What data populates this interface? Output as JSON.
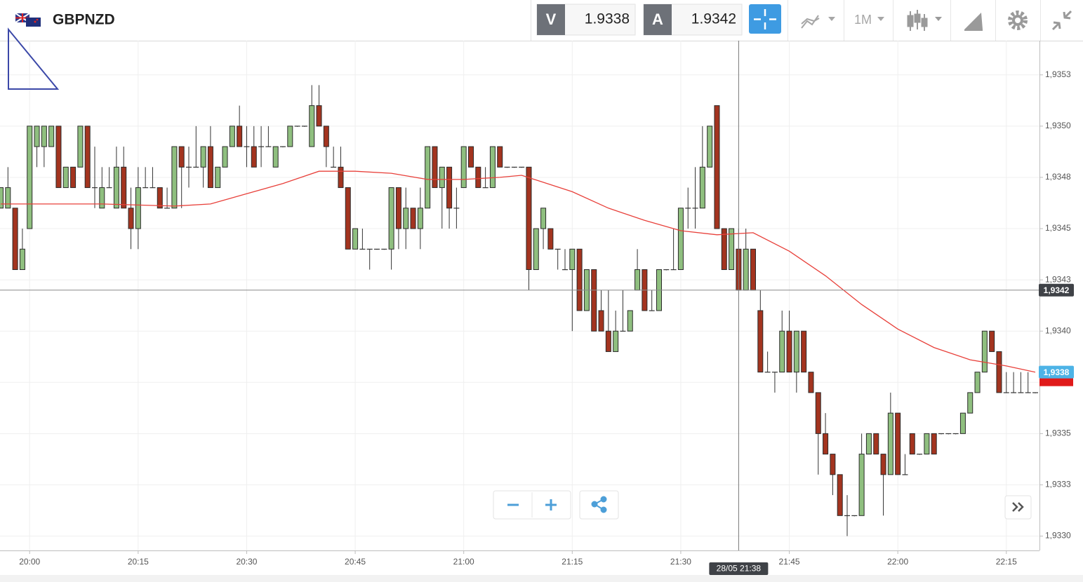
{
  "toolbar": {
    "symbol": "GBPNZD",
    "bid_label": "V",
    "bid": 1.9338,
    "ask_label": "A",
    "ask": 1.9342,
    "timeframe": "1M"
  },
  "chart_data": {
    "type": "candlestick",
    "x": [
      "19:56",
      "19:57",
      "19:58",
      "19:59",
      "20:00",
      "20:01",
      "20:02",
      "20:03",
      "20:04",
      "20:05",
      "20:06",
      "20:07",
      "20:08",
      "20:09",
      "20:10",
      "20:11",
      "20:12",
      "20:13",
      "20:14",
      "20:15",
      "20:16",
      "20:17",
      "20:18",
      "20:19",
      "20:20",
      "20:21",
      "20:22",
      "20:23",
      "20:24",
      "20:25",
      "20:26",
      "20:27",
      "20:28",
      "20:29",
      "20:30",
      "20:31",
      "20:32",
      "20:33",
      "20:34",
      "20:35",
      "20:36",
      "20:37",
      "20:38",
      "20:39",
      "20:40",
      "20:41",
      "20:42",
      "20:43",
      "20:44",
      "20:45",
      "20:46",
      "20:47",
      "20:48",
      "20:49",
      "20:50",
      "20:51",
      "20:52",
      "20:53",
      "20:54",
      "20:55",
      "20:56",
      "20:57",
      "20:58",
      "20:59",
      "21:00",
      "21:01",
      "21:02",
      "21:03",
      "21:04",
      "21:05",
      "21:06",
      "21:07",
      "21:08",
      "21:09",
      "21:10",
      "21:11",
      "21:12",
      "21:13",
      "21:14",
      "21:15",
      "21:16",
      "21:17",
      "21:18",
      "21:19",
      "21:20",
      "21:21",
      "21:22",
      "21:23",
      "21:24",
      "21:25",
      "21:26",
      "21:27",
      "21:28",
      "21:29",
      "21:30",
      "21:31",
      "21:32",
      "21:33",
      "21:34",
      "21:35",
      "21:36",
      "21:37",
      "21:38",
      "21:39",
      "21:40",
      "21:41",
      "21:42",
      "21:43",
      "21:44",
      "21:45",
      "21:46",
      "21:47",
      "21:48",
      "21:49",
      "21:50",
      "21:51",
      "21:52",
      "21:53",
      "21:54",
      "21:55",
      "21:56",
      "21:57",
      "21:58",
      "21:59",
      "22:00",
      "22:01",
      "22:02",
      "22:03",
      "22:04",
      "22:05",
      "22:06",
      "22:07",
      "22:08",
      "22:09",
      "22:10",
      "22:11",
      "22:12",
      "22:13",
      "22:14",
      "22:15",
      "22:16",
      "22:17",
      "22:18",
      "22:19"
    ],
    "open": [
      1.9346,
      1.9346,
      1.9346,
      1.9343,
      1.9345,
      1.9349,
      1.9349,
      1.9349,
      1.935,
      1.9347,
      1.9348,
      1.9348,
      1.935,
      1.9347,
      1.9346,
      1.9347,
      1.9346,
      1.9348,
      1.9346,
      1.9345,
      1.9347,
      1.9347,
      1.9347,
      1.9346,
      1.9346,
      1.9349,
      1.9348,
      1.9348,
      1.9348,
      1.9349,
      1.9347,
      1.9348,
      1.9349,
      1.935,
      1.9349,
      1.9349,
      1.9349,
      1.9349,
      1.9348,
      1.9349,
      1.9349,
      1.935,
      1.935,
      1.9349,
      1.9351,
      1.935,
      1.9348,
      1.9348,
      1.9347,
      1.9344,
      1.9344,
      1.9344,
      1.9344,
      1.9344,
      1.9344,
      1.9347,
      1.9345,
      1.9346,
      1.9345,
      1.9346,
      1.9349,
      1.9347,
      1.9348,
      1.9346,
      1.9347,
      1.9349,
      1.9348,
      1.9347,
      1.9347,
      1.9349,
      1.9348,
      1.9348,
      1.9348,
      1.9348,
      1.9343,
      1.9345,
      1.9345,
      1.9344,
      1.9343,
      1.9343,
      1.9344,
      1.9341,
      1.9343,
      1.9341,
      1.934,
      1.9339,
      1.934,
      1.934,
      1.9342,
      1.9343,
      1.9341,
      1.9341,
      1.9343,
      1.9343,
      1.9343,
      1.9346,
      1.9346,
      1.9346,
      1.9348,
      1.9351,
      1.9345,
      1.9343,
      1.9344,
      1.9342,
      1.9344,
      1.9341,
      1.9338,
      1.9338,
      1.9338,
      1.934,
      1.9338,
      1.934,
      1.9338,
      1.9337,
      1.9335,
      1.9334,
      1.9333,
      1.9331,
      1.9331,
      1.9331,
      1.9334,
      1.9335,
      1.9334,
      1.9333,
      1.9336,
      1.9333,
      1.9335,
      1.9334,
      1.9334,
      1.9335,
      1.9335,
      1.9335,
      1.9335,
      1.9335,
      1.9336,
      1.9337,
      1.9338,
      1.934,
      1.9339,
      1.9337,
      1.9337,
      1.9337,
      1.9337,
      1.9337
    ],
    "high": [
      1.9347,
      1.9348,
      1.9346,
      1.9345,
      1.935,
      1.935,
      1.935,
      1.935,
      1.935,
      1.9348,
      1.9348,
      1.935,
      1.935,
      1.9349,
      1.9348,
      1.9348,
      1.9349,
      1.9349,
      1.9347,
      1.9348,
      1.9348,
      1.9348,
      1.9347,
      1.9347,
      1.9349,
      1.9349,
      1.9349,
      1.935,
      1.9349,
      1.935,
      1.9348,
      1.9349,
      1.935,
      1.9351,
      1.935,
      1.935,
      1.935,
      1.935,
      1.9349,
      1.9349,
      1.935,
      1.935,
      1.935,
      1.9352,
      1.9352,
      1.935,
      1.9349,
      1.9349,
      1.9347,
      1.9345,
      1.9345,
      1.9344,
      1.9344,
      1.9344,
      1.9347,
      1.9347,
      1.9347,
      1.9346,
      1.9347,
      1.9349,
      1.9349,
      1.9348,
      1.9348,
      1.9347,
      1.9349,
      1.9349,
      1.9348,
      1.9348,
      1.9349,
      1.9349,
      1.9348,
      1.9348,
      1.9348,
      1.9348,
      1.9345,
      1.9346,
      1.9345,
      1.9344,
      1.9344,
      1.9344,
      1.9344,
      1.9343,
      1.9343,
      1.9342,
      1.9342,
      1.9341,
      1.9342,
      1.9341,
      1.9344,
      1.9343,
      1.9342,
      1.9343,
      1.9343,
      1.9345,
      1.9346,
      1.9347,
      1.9348,
      1.935,
      1.935,
      1.9351,
      1.9345,
      1.9345,
      1.9345,
      1.9345,
      1.9344,
      1.9342,
      1.9339,
      1.9338,
      1.9341,
      1.9341,
      1.934,
      1.934,
      1.9338,
      1.9337,
      1.9336,
      1.9334,
      1.9333,
      1.9332,
      1.9331,
      1.9335,
      1.9335,
      1.9335,
      1.9334,
      1.9337,
      1.9336,
      1.9334,
      1.9335,
      1.9334,
      1.9335,
      1.9335,
      1.9335,
      1.9335,
      1.9335,
      1.9336,
      1.9337,
      1.9338,
      1.934,
      1.934,
      1.9339,
      1.9338,
      1.9338,
      1.9338,
      1.9338,
      1.9337
    ],
    "low": [
      1.9346,
      1.9346,
      1.9343,
      1.9343,
      1.9345,
      1.9348,
      1.9348,
      1.9349,
      1.9347,
      1.9347,
      1.9347,
      1.9348,
      1.9347,
      1.9346,
      1.9346,
      1.9347,
      1.9346,
      1.9346,
      1.9344,
      1.9344,
      1.9347,
      1.9347,
      1.9346,
      1.9346,
      1.9346,
      1.9346,
      1.9347,
      1.9348,
      1.9347,
      1.9347,
      1.9347,
      1.9348,
      1.9349,
      1.9349,
      1.9348,
      1.9348,
      1.9348,
      1.9349,
      1.9348,
      1.9349,
      1.9349,
      1.935,
      1.935,
      1.9349,
      1.935,
      1.9348,
      1.9348,
      1.9347,
      1.9344,
      1.9344,
      1.9344,
      1.9343,
      1.9344,
      1.9344,
      1.9343,
      1.9344,
      1.9344,
      1.9345,
      1.9344,
      1.9346,
      1.9347,
      1.9345,
      1.9345,
      1.9345,
      1.9347,
      1.9348,
      1.9347,
      1.9347,
      1.9347,
      1.9348,
      1.9348,
      1.9348,
      1.9348,
      1.9342,
      1.9343,
      1.9344,
      1.9344,
      1.9343,
      1.9343,
      1.934,
      1.9341,
      1.9341,
      1.934,
      1.934,
      1.9339,
      1.9339,
      1.934,
      1.934,
      1.9342,
      1.9341,
      1.9341,
      1.9341,
      1.9343,
      1.9343,
      1.9343,
      1.9345,
      1.9345,
      1.9346,
      1.9348,
      1.9345,
      1.9343,
      1.9343,
      1.9342,
      1.9342,
      1.9342,
      1.9338,
      1.9338,
      1.9337,
      1.9338,
      1.9338,
      1.9337,
      1.9338,
      1.9337,
      1.9333,
      1.9334,
      1.9332,
      1.9331,
      1.933,
      1.9331,
      1.9331,
      1.9334,
      1.9334,
      1.9331,
      1.9333,
      1.9333,
      1.9333,
      1.9334,
      1.9334,
      1.9334,
      1.9334,
      1.9335,
      1.9335,
      1.9335,
      1.9335,
      1.9336,
      1.9337,
      1.9338,
      1.9339,
      1.9337,
      1.9337,
      1.9337,
      1.9337,
      1.9337,
      1.9337
    ],
    "close": [
      1.9347,
      1.9347,
      1.9343,
      1.9344,
      1.935,
      1.935,
      1.935,
      1.935,
      1.9347,
      1.9348,
      1.9347,
      1.935,
      1.9347,
      1.9347,
      1.9347,
      1.9347,
      1.9348,
      1.9346,
      1.9345,
      1.9347,
      1.9347,
      1.9347,
      1.9346,
      1.9346,
      1.9349,
      1.9348,
      1.9348,
      1.9348,
      1.9349,
      1.9347,
      1.9348,
      1.9349,
      1.935,
      1.9349,
      1.9349,
      1.9348,
      1.9349,
      1.9349,
      1.9349,
      1.9349,
      1.935,
      1.935,
      1.935,
      1.9351,
      1.935,
      1.9349,
      1.9348,
      1.9347,
      1.9344,
      1.9345,
      1.9344,
      1.9344,
      1.9344,
      1.9344,
      1.9347,
      1.9345,
      1.9346,
      1.9345,
      1.9346,
      1.9349,
      1.9347,
      1.9348,
      1.9346,
      1.9346,
      1.9349,
      1.9348,
      1.9347,
      1.9347,
      1.9349,
      1.9348,
      1.9348,
      1.9348,
      1.9348,
      1.9343,
      1.9345,
      1.9346,
      1.9344,
      1.9344,
      1.9343,
      1.9344,
      1.9341,
      1.9343,
      1.934,
      1.934,
      1.9339,
      1.934,
      1.934,
      1.9341,
      1.9343,
      1.9341,
      1.9341,
      1.9343,
      1.9343,
      1.9343,
      1.9346,
      1.9346,
      1.9346,
      1.9348,
      1.935,
      1.9345,
      1.9343,
      1.9345,
      1.9342,
      1.9344,
      1.9342,
      1.9338,
      1.9338,
      1.9338,
      1.934,
      1.9338,
      1.934,
      1.9338,
      1.9337,
      1.9335,
      1.9334,
      1.9333,
      1.9331,
      1.9331,
      1.9331,
      1.9334,
      1.9335,
      1.9334,
      1.9333,
      1.9336,
      1.9333,
      1.9333,
      1.9334,
      1.9334,
      1.9335,
      1.9334,
      1.9335,
      1.9335,
      1.9335,
      1.9336,
      1.9337,
      1.9338,
      1.934,
      1.9339,
      1.9337,
      1.9337,
      1.9337,
      1.9337,
      1.9337,
      1.9337
    ],
    "up_color": "#8fbf7f",
    "down_color": "#a3341f",
    "ylim": [
      1.93293,
      1.93541
    ],
    "yticks": [
      {
        "value": 1.93525,
        "label": "1,9353"
      },
      {
        "value": 1.935,
        "label": "1,9350"
      },
      {
        "value": 1.93475,
        "label": "1,9348"
      },
      {
        "value": 1.9345,
        "label": "1,9345"
      },
      {
        "value": 1.93425,
        "label": "1,9343"
      },
      {
        "value": 1.934,
        "label": "1,9340"
      },
      {
        "value": 1.93375,
        "label": "1,9338"
      },
      {
        "value": 1.9335,
        "label": "1,9335"
      },
      {
        "value": 1.93325,
        "label": "1,9333"
      },
      {
        "value": 1.933,
        "label": "1,9330"
      }
    ],
    "xticks": [
      "20:00",
      "20:15",
      "20:30",
      "20:45",
      "21:00",
      "21:15",
      "21:30",
      "21:45",
      "22:00",
      "22:15"
    ],
    "grid": true,
    "moving_average": {
      "color": "#e8403a",
      "x": [
        "19:56",
        "20:00",
        "20:10",
        "20:20",
        "20:25",
        "20:30",
        "20:35",
        "20:40",
        "20:45",
        "20:50",
        "20:55",
        "21:00",
        "21:05",
        "21:08",
        "21:15",
        "21:20",
        "21:25",
        "21:30",
        "21:35",
        "21:40",
        "21:45",
        "21:50",
        "21:55",
        "22:00",
        "22:05",
        "22:10",
        "22:15",
        "22:19"
      ],
      "values": [
        1.93462,
        1.93462,
        1.93462,
        1.93461,
        1.93462,
        1.93467,
        1.93472,
        1.93478,
        1.93478,
        1.93477,
        1.93474,
        1.93474,
        1.93475,
        1.93476,
        1.93468,
        1.9346,
        1.93454,
        1.93449,
        1.93447,
        1.93448,
        1.93439,
        1.93427,
        1.93413,
        1.93401,
        1.93392,
        1.93386,
        1.93383,
        1.9338
      ]
    },
    "price_lines": [
      {
        "value": 1.9342,
        "label": "1,9342",
        "color": "#3f4247",
        "show_line": true
      },
      {
        "value": 1.9338,
        "label": "1,9338",
        "color": "#4db3e6",
        "show_line": false
      }
    ],
    "crosshair": {
      "x": "21:38",
      "label": "28/05 21:38"
    }
  }
}
